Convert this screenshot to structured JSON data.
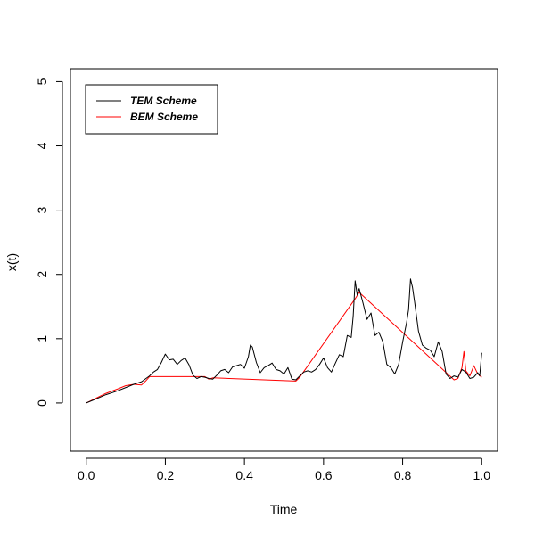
{
  "chart_data": {
    "type": "line",
    "title": "",
    "xlabel": "Time",
    "ylabel": "x(t)",
    "xlim": [
      -0.04,
      1.04
    ],
    "ylim": [
      -0.75,
      5.2
    ],
    "x_ticks": [
      0.0,
      0.2,
      0.4,
      0.6,
      0.8,
      1.0
    ],
    "x_tick_labels": [
      "0.0",
      "0.2",
      "0.4",
      "0.6",
      "0.8",
      "1.0"
    ],
    "y_ticks": [
      0,
      1,
      2,
      3,
      4,
      5
    ],
    "y_tick_labels": [
      "0",
      "1",
      "2",
      "3",
      "4",
      "5"
    ],
    "grid": false,
    "legend_position": "top-left",
    "series": [
      {
        "name": "TEM Scheme",
        "color": "#000000",
        "points": [
          [
            0.0,
            0.0
          ],
          [
            0.02,
            0.05
          ],
          [
            0.05,
            0.13
          ],
          [
            0.08,
            0.19
          ],
          [
            0.1,
            0.24
          ],
          [
            0.12,
            0.29
          ],
          [
            0.14,
            0.33
          ],
          [
            0.16,
            0.42
          ],
          [
            0.17,
            0.48
          ],
          [
            0.18,
            0.52
          ],
          [
            0.19,
            0.63
          ],
          [
            0.2,
            0.76
          ],
          [
            0.21,
            0.67
          ],
          [
            0.22,
            0.68
          ],
          [
            0.23,
            0.6
          ],
          [
            0.24,
            0.66
          ],
          [
            0.25,
            0.7
          ],
          [
            0.26,
            0.59
          ],
          [
            0.27,
            0.43
          ],
          [
            0.28,
            0.38
          ],
          [
            0.29,
            0.41
          ],
          [
            0.3,
            0.4
          ],
          [
            0.31,
            0.38
          ],
          [
            0.32,
            0.37
          ],
          [
            0.33,
            0.43
          ],
          [
            0.34,
            0.5
          ],
          [
            0.35,
            0.52
          ],
          [
            0.36,
            0.47
          ],
          [
            0.37,
            0.56
          ],
          [
            0.38,
            0.58
          ],
          [
            0.39,
            0.6
          ],
          [
            0.4,
            0.54
          ],
          [
            0.41,
            0.72
          ],
          [
            0.415,
            0.9
          ],
          [
            0.42,
            0.87
          ],
          [
            0.43,
            0.63
          ],
          [
            0.44,
            0.47
          ],
          [
            0.45,
            0.55
          ],
          [
            0.46,
            0.58
          ],
          [
            0.47,
            0.62
          ],
          [
            0.48,
            0.52
          ],
          [
            0.49,
            0.5
          ],
          [
            0.5,
            0.45
          ],
          [
            0.51,
            0.55
          ],
          [
            0.52,
            0.37
          ],
          [
            0.53,
            0.36
          ],
          [
            0.54,
            0.42
          ],
          [
            0.55,
            0.48
          ],
          [
            0.56,
            0.5
          ],
          [
            0.57,
            0.48
          ],
          [
            0.58,
            0.52
          ],
          [
            0.59,
            0.6
          ],
          [
            0.6,
            0.7
          ],
          [
            0.61,
            0.55
          ],
          [
            0.62,
            0.48
          ],
          [
            0.63,
            0.62
          ],
          [
            0.64,
            0.75
          ],
          [
            0.65,
            0.72
          ],
          [
            0.66,
            1.05
          ],
          [
            0.67,
            1.02
          ],
          [
            0.675,
            1.35
          ],
          [
            0.68,
            1.9
          ],
          [
            0.685,
            1.68
          ],
          [
            0.69,
            1.78
          ],
          [
            0.7,
            1.55
          ],
          [
            0.71,
            1.3
          ],
          [
            0.72,
            1.4
          ],
          [
            0.73,
            1.05
          ],
          [
            0.74,
            1.1
          ],
          [
            0.75,
            0.95
          ],
          [
            0.76,
            0.6
          ],
          [
            0.77,
            0.55
          ],
          [
            0.78,
            0.45
          ],
          [
            0.79,
            0.6
          ],
          [
            0.8,
            0.95
          ],
          [
            0.81,
            1.25
          ],
          [
            0.815,
            1.45
          ],
          [
            0.82,
            1.93
          ],
          [
            0.825,
            1.8
          ],
          [
            0.83,
            1.58
          ],
          [
            0.84,
            1.12
          ],
          [
            0.85,
            0.9
          ],
          [
            0.86,
            0.85
          ],
          [
            0.87,
            0.82
          ],
          [
            0.88,
            0.72
          ],
          [
            0.89,
            0.95
          ],
          [
            0.9,
            0.8
          ],
          [
            0.91,
            0.45
          ],
          [
            0.92,
            0.38
          ],
          [
            0.93,
            0.42
          ],
          [
            0.94,
            0.4
          ],
          [
            0.95,
            0.52
          ],
          [
            0.96,
            0.48
          ],
          [
            0.97,
            0.38
          ],
          [
            0.98,
            0.4
          ],
          [
            0.99,
            0.47
          ],
          [
            0.995,
            0.42
          ],
          [
            1.0,
            0.78
          ]
        ]
      },
      {
        "name": "BEM Scheme",
        "color": "#ff0000",
        "points": [
          [
            0.0,
            0.0
          ],
          [
            0.02,
            0.06
          ],
          [
            0.05,
            0.15
          ],
          [
            0.08,
            0.22
          ],
          [
            0.1,
            0.27
          ],
          [
            0.12,
            0.29
          ],
          [
            0.14,
            0.28
          ],
          [
            0.15,
            0.34
          ],
          [
            0.16,
            0.41
          ],
          [
            0.3,
            0.41
          ],
          [
            0.31,
            0.37
          ],
          [
            0.32,
            0.39
          ],
          [
            0.53,
            0.34
          ],
          [
            0.54,
            0.4
          ],
          [
            0.68,
            1.62
          ],
          [
            0.69,
            1.72
          ],
          [
            0.93,
            0.36
          ],
          [
            0.94,
            0.38
          ],
          [
            0.95,
            0.55
          ],
          [
            0.955,
            0.8
          ],
          [
            0.96,
            0.5
          ],
          [
            0.97,
            0.42
          ],
          [
            0.98,
            0.58
          ],
          [
            0.99,
            0.45
          ],
          [
            1.0,
            0.4
          ]
        ]
      }
    ]
  }
}
